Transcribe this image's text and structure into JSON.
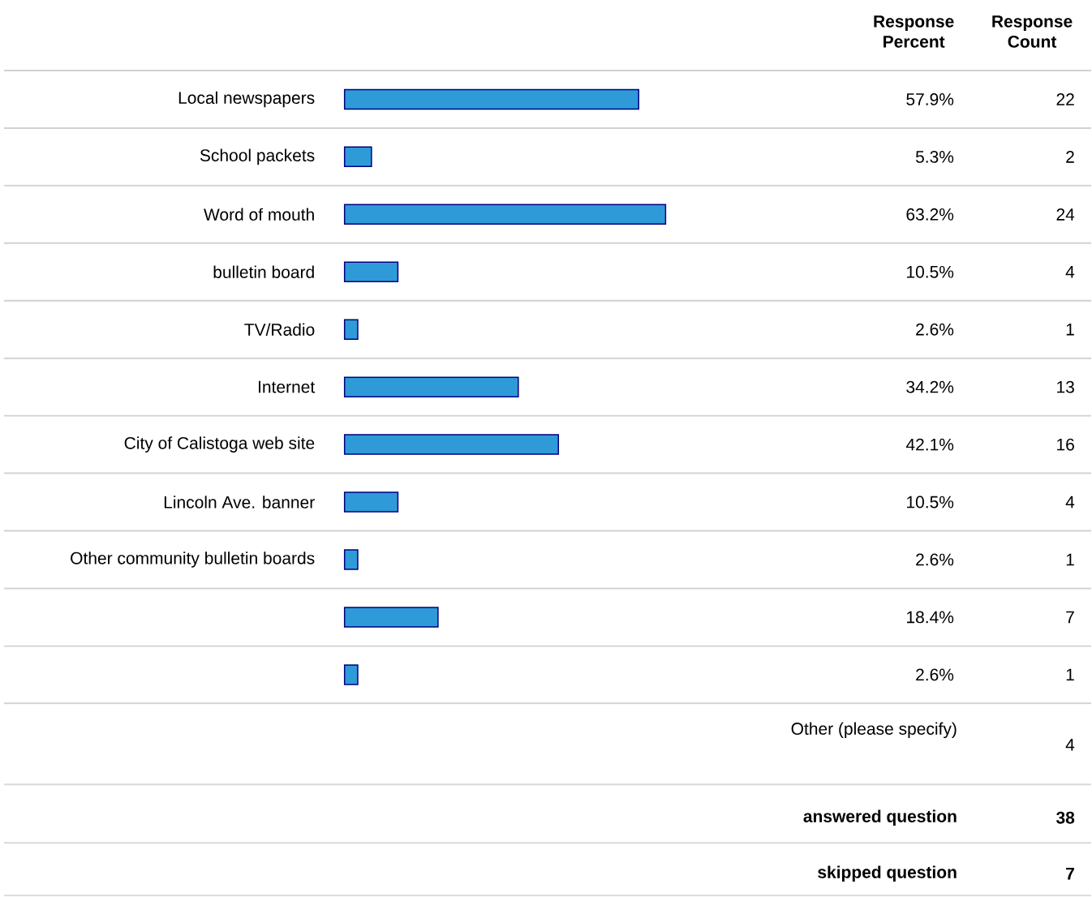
{
  "chart_data": {
    "type": "bar",
    "orientation": "horizontal",
    "categories": [
      "Local newspapers",
      "School packets",
      "Word of mouth",
      "bulletin board",
      "TV/Radio",
      "Internet",
      "City of Calistoga web site",
      "Lincoln Ave. banner",
      "Other community bulletin boards",
      null,
      null
    ],
    "values": [
      57.9,
      5.3,
      63.2,
      10.5,
      2.6,
      34.2,
      42.1,
      10.5,
      2.6,
      18.4,
      2.6
    ],
    "value_labels": [
      "57.9%",
      "5.3%",
      "63.2%",
      "10.5%",
      "2.6%",
      "34.2%",
      "42.1%",
      "10.5%",
      "2.6%",
      "18.4%",
      "2.6%"
    ],
    "color": "#2f9ad8",
    "tick_labels": "y",
    "annotations": [
      "Response Percent",
      "Response Count",
      "22",
      "2",
      "24",
      "4",
      "1",
      "13",
      "16",
      "4",
      "1",
      "7",
      "1",
      "Other (please specify)",
      "4",
      "answered question",
      "38",
      "skipped question",
      "7"
    ]
  }
}
